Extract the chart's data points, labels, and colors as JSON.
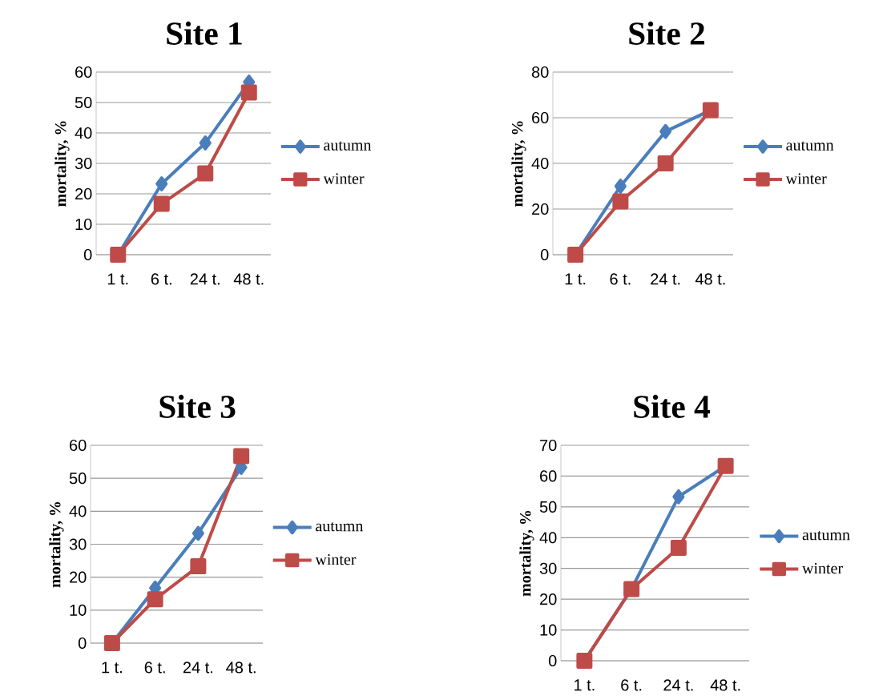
{
  "chart_data": [
    {
      "type": "line",
      "title": "Site 1",
      "ylabel": "mortality, %",
      "categories": [
        "1 t.",
        "6 t.",
        "24 t.",
        "48 t."
      ],
      "ylim": [
        0,
        60
      ],
      "yticks": [
        0,
        10,
        20,
        30,
        40,
        50,
        60
      ],
      "grid": "y",
      "legend": "right",
      "line_style": "solid",
      "series": [
        {
          "name": "autumn",
          "color": "#4a7ebb",
          "marker": "diamond",
          "values": [
            0,
            23.3,
            36.7,
            56.7
          ]
        },
        {
          "name": "winter",
          "color": "#be4b48",
          "marker": "square",
          "values": [
            0,
            16.7,
            26.7,
            53.3
          ]
        }
      ]
    },
    {
      "type": "line",
      "title": "Site 2",
      "ylabel": "mortality, %",
      "categories": [
        "1 t.",
        "6 t.",
        "24 t.",
        "48 t."
      ],
      "ylim": [
        0,
        80
      ],
      "yticks": [
        0,
        20,
        40,
        60,
        80
      ],
      "grid": "y",
      "legend": "right",
      "line_style": "solid",
      "series": [
        {
          "name": "autumn",
          "color": "#4a7ebb",
          "marker": "diamond",
          "values": [
            0,
            30,
            54,
            63.3
          ]
        },
        {
          "name": "winter",
          "color": "#be4b48",
          "marker": "square",
          "values": [
            0,
            23.3,
            40,
            63.3
          ]
        }
      ]
    },
    {
      "type": "line",
      "title": "Site 3",
      "ylabel": "mortality, %",
      "categories": [
        "1 t.",
        "6 t.",
        "24 t.",
        "48 t."
      ],
      "ylim": [
        0,
        60
      ],
      "yticks": [
        0,
        10,
        20,
        30,
        40,
        50,
        60
      ],
      "grid": "y",
      "legend": "right",
      "line_style": "solid",
      "series": [
        {
          "name": "autumn",
          "color": "#4a7ebb",
          "marker": "diamond",
          "values": [
            0,
            16.7,
            33.3,
            53.3
          ]
        },
        {
          "name": "winter",
          "color": "#be4b48",
          "marker": "square",
          "values": [
            0,
            13.3,
            23.3,
            56.7
          ]
        }
      ]
    },
    {
      "type": "line",
      "title": "Site 4",
      "ylabel": "mortality, %",
      "categories": [
        "1 t.",
        "6 t.",
        "24 t.",
        "48 t."
      ],
      "ylim": [
        0,
        70
      ],
      "yticks": [
        0,
        10,
        20,
        30,
        40,
        50,
        60,
        70
      ],
      "grid": "y",
      "legend": "right",
      "line_style": "solid",
      "series": [
        {
          "name": "autumn",
          "color": "#4a7ebb",
          "marker": "diamond",
          "values": [
            0,
            23.3,
            53.3,
            63.3
          ]
        },
        {
          "name": "winter",
          "color": "#be4b48",
          "marker": "square",
          "values": [
            0,
            23.3,
            36.7,
            63.3
          ]
        }
      ]
    }
  ]
}
